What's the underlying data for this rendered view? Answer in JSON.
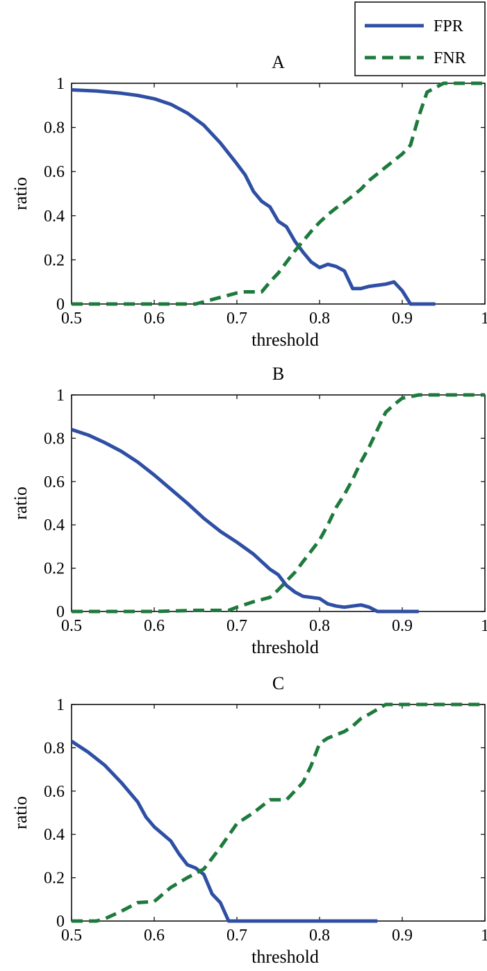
{
  "legend": {
    "items": [
      {
        "label": "FPR",
        "color": "#2e4fa3",
        "dash": false
      },
      {
        "label": "FNR",
        "color": "#1e7a3c",
        "dash": true
      }
    ]
  },
  "chart_data": [
    {
      "type": "line",
      "title": "A",
      "xlabel": "threshold",
      "ylabel": "ratio",
      "xlim": [
        0.5,
        1
      ],
      "ylim": [
        0,
        1
      ],
      "xticks": [
        "0.5",
        "0.6",
        "0.7",
        "0.8",
        "0.9",
        "1"
      ],
      "yticks": [
        "0",
        "0.2",
        "0.4",
        "0.6",
        "0.8",
        "1"
      ],
      "series": [
        {
          "name": "FPR",
          "x": [
            0.5,
            0.53,
            0.56,
            0.58,
            0.6,
            0.62,
            0.64,
            0.66,
            0.68,
            0.7,
            0.71,
            0.72,
            0.73,
            0.74,
            0.75,
            0.76,
            0.77,
            0.78,
            0.79,
            0.8,
            0.81,
            0.82,
            0.83,
            0.84,
            0.85,
            0.86,
            0.87,
            0.88,
            0.89,
            0.9,
            0.91,
            0.92,
            0.94
          ],
          "y": [
            0.97,
            0.965,
            0.955,
            0.945,
            0.93,
            0.905,
            0.865,
            0.81,
            0.73,
            0.635,
            0.585,
            0.51,
            0.465,
            0.44,
            0.375,
            0.35,
            0.285,
            0.235,
            0.19,
            0.165,
            0.18,
            0.17,
            0.15,
            0.07,
            0.07,
            0.08,
            0.085,
            0.09,
            0.1,
            0.06,
            0,
            0,
            0
          ]
        },
        {
          "name": "FNR",
          "x": [
            0.5,
            0.55,
            0.6,
            0.65,
            0.67,
            0.69,
            0.7,
            0.71,
            0.72,
            0.73,
            0.74,
            0.75,
            0.76,
            0.77,
            0.78,
            0.79,
            0.8,
            0.81,
            0.82,
            0.83,
            0.84,
            0.85,
            0.86,
            0.87,
            0.88,
            0.89,
            0.9,
            0.91,
            0.92,
            0.93,
            0.95,
            1
          ],
          "y": [
            0,
            0,
            0,
            0,
            0.02,
            0.04,
            0.05,
            0.055,
            0.055,
            0.055,
            0.1,
            0.14,
            0.19,
            0.24,
            0.285,
            0.33,
            0.37,
            0.405,
            0.435,
            0.46,
            0.49,
            0.52,
            0.56,
            0.59,
            0.62,
            0.65,
            0.68,
            0.72,
            0.85,
            0.96,
            1,
            1
          ]
        }
      ]
    },
    {
      "type": "line",
      "title": "B",
      "xlabel": "threshold",
      "ylabel": "ratio",
      "xlim": [
        0.5,
        1
      ],
      "ylim": [
        0,
        1
      ],
      "xticks": [
        "0.5",
        "0.6",
        "0.7",
        "0.8",
        "0.9",
        "1"
      ],
      "yticks": [
        "0",
        "0.2",
        "0.4",
        "0.6",
        "0.8",
        "1"
      ],
      "series": [
        {
          "name": "FPR",
          "x": [
            0.5,
            0.52,
            0.54,
            0.56,
            0.58,
            0.6,
            0.62,
            0.64,
            0.66,
            0.68,
            0.7,
            0.72,
            0.74,
            0.75,
            0.76,
            0.77,
            0.78,
            0.79,
            0.8,
            0.81,
            0.82,
            0.83,
            0.84,
            0.85,
            0.86,
            0.87,
            0.88,
            0.9,
            0.92
          ],
          "y": [
            0.84,
            0.815,
            0.78,
            0.74,
            0.69,
            0.63,
            0.565,
            0.5,
            0.43,
            0.37,
            0.32,
            0.265,
            0.195,
            0.17,
            0.12,
            0.09,
            0.07,
            0.065,
            0.06,
            0.035,
            0.025,
            0.02,
            0.025,
            0.03,
            0.02,
            0,
            0,
            0,
            0
          ]
        },
        {
          "name": "FNR",
          "x": [
            0.5,
            0.55,
            0.6,
            0.65,
            0.69,
            0.7,
            0.72,
            0.74,
            0.75,
            0.76,
            0.77,
            0.78,
            0.79,
            0.8,
            0.81,
            0.82,
            0.83,
            0.84,
            0.85,
            0.86,
            0.87,
            0.88,
            0.89,
            0.9,
            0.92,
            0.95,
            1
          ],
          "y": [
            0,
            0,
            0,
            0.005,
            0.005,
            0.02,
            0.045,
            0.065,
            0.1,
            0.14,
            0.18,
            0.23,
            0.28,
            0.33,
            0.4,
            0.48,
            0.54,
            0.61,
            0.69,
            0.76,
            0.84,
            0.92,
            0.955,
            0.985,
            1,
            1,
            1
          ]
        }
      ]
    },
    {
      "type": "line",
      "title": "C",
      "xlabel": "threshold",
      "ylabel": "ratio",
      "xlim": [
        0.5,
        1
      ],
      "ylim": [
        0,
        1
      ],
      "xticks": [
        "0.5",
        "0.6",
        "0.7",
        "0.8",
        "0.9",
        "1"
      ],
      "yticks": [
        "0",
        "0.2",
        "0.4",
        "0.6",
        "0.8",
        "1"
      ],
      "series": [
        {
          "name": "FPR",
          "x": [
            0.5,
            0.52,
            0.54,
            0.56,
            0.58,
            0.59,
            0.6,
            0.62,
            0.63,
            0.64,
            0.65,
            0.66,
            0.67,
            0.68,
            0.69,
            0.7,
            0.75,
            0.8,
            0.87
          ],
          "y": [
            0.83,
            0.78,
            0.72,
            0.64,
            0.55,
            0.48,
            0.435,
            0.37,
            0.31,
            0.26,
            0.245,
            0.215,
            0.125,
            0.085,
            0,
            0,
            0,
            0,
            0
          ]
        },
        {
          "name": "FNR",
          "x": [
            0.5,
            0.53,
            0.54,
            0.56,
            0.58,
            0.6,
            0.62,
            0.64,
            0.66,
            0.68,
            0.7,
            0.72,
            0.74,
            0.76,
            0.78,
            0.79,
            0.8,
            0.81,
            0.82,
            0.83,
            0.84,
            0.85,
            0.86,
            0.88,
            0.9,
            1
          ],
          "y": [
            0,
            0,
            0.01,
            0.045,
            0.085,
            0.09,
            0.155,
            0.2,
            0.24,
            0.34,
            0.45,
            0.5,
            0.56,
            0.56,
            0.64,
            0.72,
            0.82,
            0.845,
            0.86,
            0.875,
            0.9,
            0.935,
            0.955,
            1,
            1,
            1
          ]
        }
      ]
    }
  ]
}
